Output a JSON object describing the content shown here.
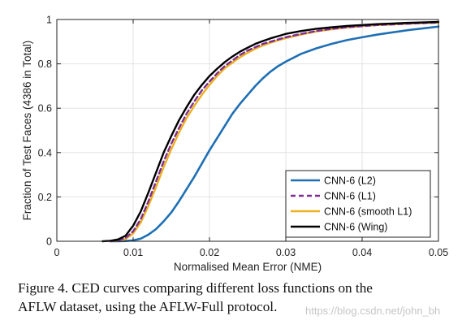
{
  "chart_data": {
    "type": "line",
    "title": "",
    "xlabel": "Normalised Mean Error (NME)",
    "ylabel": "Fraction of Test Faces (4386 in Total)",
    "xlim": [
      0,
      0.05
    ],
    "ylim": [
      0,
      1
    ],
    "xticks": [
      "0",
      "0.01",
      "0.02",
      "0.03",
      "0.04",
      "0.05"
    ],
    "yticks": [
      "0",
      "0.2",
      "0.4",
      "0.6",
      "0.8",
      "1"
    ],
    "grid": true,
    "legend_position": "bottom-right",
    "series": [
      {
        "name": "CNN-6 (L2)",
        "color": "#1f6fb4",
        "dash": "solid",
        "x": [
          0.007,
          0.008,
          0.009,
          0.01,
          0.011,
          0.012,
          0.013,
          0.014,
          0.015,
          0.016,
          0.017,
          0.018,
          0.019,
          0.02,
          0.021,
          0.022,
          0.023,
          0.024,
          0.025,
          0.026,
          0.027,
          0.028,
          0.029,
          0.03,
          0.032,
          0.034,
          0.036,
          0.038,
          0.04,
          0.042,
          0.044,
          0.046,
          0.048,
          0.05
        ],
        "y": [
          0.0,
          0.0,
          0.001,
          0.004,
          0.012,
          0.03,
          0.055,
          0.09,
          0.13,
          0.18,
          0.235,
          0.29,
          0.35,
          0.41,
          0.465,
          0.52,
          0.575,
          0.62,
          0.66,
          0.7,
          0.735,
          0.765,
          0.79,
          0.81,
          0.845,
          0.87,
          0.89,
          0.907,
          0.92,
          0.932,
          0.942,
          0.952,
          0.96,
          0.968
        ]
      },
      {
        "name": "CNN-6 (L1)",
        "color": "#7e2f8e",
        "dash": "dashed",
        "x": [
          0.007,
          0.008,
          0.009,
          0.01,
          0.011,
          0.012,
          0.013,
          0.014,
          0.015,
          0.016,
          0.017,
          0.018,
          0.019,
          0.02,
          0.021,
          0.022,
          0.023,
          0.024,
          0.025,
          0.026,
          0.027,
          0.028,
          0.029,
          0.03,
          0.032,
          0.034,
          0.036,
          0.038,
          0.04,
          0.042,
          0.044,
          0.046,
          0.048,
          0.05
        ],
        "y": [
          0.0,
          0.003,
          0.015,
          0.045,
          0.1,
          0.18,
          0.27,
          0.36,
          0.44,
          0.51,
          0.575,
          0.63,
          0.68,
          0.72,
          0.757,
          0.79,
          0.815,
          0.84,
          0.86,
          0.875,
          0.89,
          0.9,
          0.91,
          0.92,
          0.935,
          0.948,
          0.958,
          0.965,
          0.97,
          0.975,
          0.978,
          0.981,
          0.984,
          0.986
        ]
      },
      {
        "name": "CNN-6 (smooth L1)",
        "color": "#edb120",
        "dash": "solid",
        "x": [
          0.007,
          0.008,
          0.009,
          0.01,
          0.011,
          0.012,
          0.013,
          0.014,
          0.015,
          0.016,
          0.017,
          0.018,
          0.019,
          0.02,
          0.021,
          0.022,
          0.023,
          0.024,
          0.025,
          0.026,
          0.027,
          0.028,
          0.029,
          0.03,
          0.032,
          0.034,
          0.036,
          0.038,
          0.04,
          0.042,
          0.044,
          0.046,
          0.048,
          0.05
        ],
        "y": [
          0.0,
          0.002,
          0.01,
          0.035,
          0.085,
          0.16,
          0.245,
          0.335,
          0.415,
          0.49,
          0.555,
          0.61,
          0.66,
          0.705,
          0.745,
          0.78,
          0.805,
          0.83,
          0.85,
          0.868,
          0.883,
          0.895,
          0.906,
          0.916,
          0.932,
          0.946,
          0.956,
          0.964,
          0.97,
          0.975,
          0.978,
          0.981,
          0.984,
          0.986
        ]
      },
      {
        "name": "CNN-6 (Wing)",
        "color": "#000000",
        "dash": "solid",
        "x": [
          0.006,
          0.007,
          0.008,
          0.009,
          0.01,
          0.011,
          0.012,
          0.013,
          0.014,
          0.015,
          0.016,
          0.017,
          0.018,
          0.019,
          0.02,
          0.021,
          0.022,
          0.023,
          0.024,
          0.025,
          0.026,
          0.027,
          0.028,
          0.029,
          0.03,
          0.032,
          0.034,
          0.036,
          0.038,
          0.04,
          0.042,
          0.044,
          0.046,
          0.048,
          0.05
        ],
        "y": [
          0.0,
          0.002,
          0.008,
          0.025,
          0.07,
          0.135,
          0.22,
          0.31,
          0.4,
          0.475,
          0.545,
          0.605,
          0.66,
          0.705,
          0.745,
          0.778,
          0.808,
          0.833,
          0.855,
          0.873,
          0.89,
          0.903,
          0.915,
          0.925,
          0.935,
          0.948,
          0.958,
          0.965,
          0.971,
          0.975,
          0.979,
          0.982,
          0.985,
          0.987,
          0.989
        ]
      }
    ]
  },
  "caption": {
    "line1": "Figure 4. CED curves comparing different loss functions on the",
    "line2": "AFLW dataset, using the AFLW-Full protocol."
  },
  "watermark": "https://blog.csdn.net/john_bh"
}
